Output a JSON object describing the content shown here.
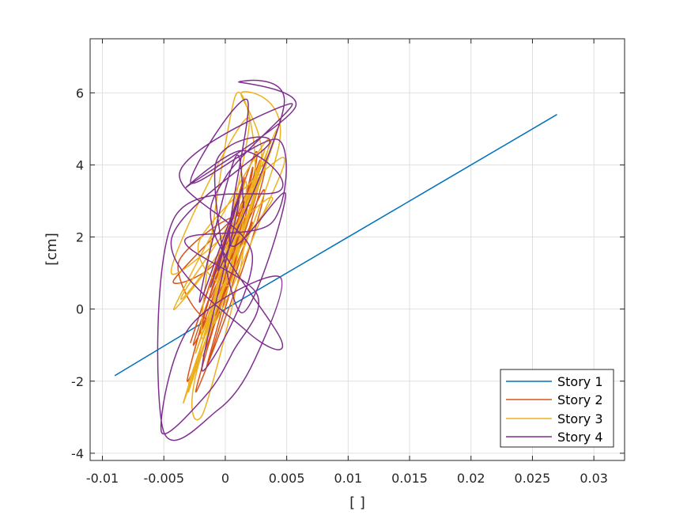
{
  "chart_data": {
    "type": "line",
    "title": "",
    "xlabel": "[ ]",
    "ylabel": "[cm]",
    "xlim": [
      -0.011,
      0.0325
    ],
    "ylim": [
      -4.2,
      7.5
    ],
    "xticks": [
      -0.01,
      -0.005,
      0,
      0.005,
      0.01,
      0.015,
      0.02,
      0.025,
      0.03
    ],
    "xtick_labels": [
      "-0.01",
      "-0.005",
      "0",
      "0.005",
      "0.01",
      "0.015",
      "0.02",
      "0.025",
      "0.03"
    ],
    "yticks": [
      -4,
      -2,
      0,
      2,
      4,
      6
    ],
    "ytick_labels": [
      "-4",
      "-2",
      "0",
      "2",
      "4",
      "6"
    ],
    "grid": true,
    "legend_position": "bottom-right",
    "series": [
      {
        "name": "Story 1",
        "color": "#0072BD",
        "x": [
          -0.009,
          0.0,
          0.009,
          0.018,
          0.027
        ],
        "y": [
          -1.85,
          0.0,
          1.8,
          3.6,
          5.4
        ]
      },
      {
        "name": "Story 2",
        "color": "#D95319",
        "x": [
          -0.0012,
          0.0006,
          -0.0002,
          0.0018,
          -0.0026,
          0.0022,
          -0.0031,
          0.0015,
          -0.0008,
          0.0021,
          -0.0042,
          -0.0005,
          0.0028,
          -0.002,
          0.0009,
          0.0032,
          -0.0015,
          0.0012,
          0.0024,
          -0.0028,
          0.0004,
          0.0027,
          -0.0018,
          0.0016,
          -0.0038,
          -0.0009,
          0.0022,
          0.0008,
          -0.0024,
          0.0014,
          0.0031,
          -0.0011
        ],
        "y": [
          0.3,
          1.7,
          0.7,
          3.1,
          -1.0,
          2.4,
          -2.0,
          3.6,
          0.9,
          2.9,
          0.8,
          1.4,
          4.1,
          -0.6,
          2.6,
          3.8,
          -1.6,
          1.9,
          4.3,
          -0.9,
          2.2,
          3.4,
          -1.3,
          2.5,
          1.3,
          -0.2,
          3.9,
          1.6,
          -2.3,
          1.1,
          3.3,
          0.2
        ]
      },
      {
        "name": "Story 3",
        "color": "#EDB120",
        "x": [
          -0.0014,
          0.0011,
          -0.0024,
          0.0032,
          -0.0006,
          0.0027,
          -0.003,
          0.0036,
          -0.0042,
          0.0022,
          0.0008,
          -0.0019,
          0.0033,
          -0.0034,
          0.0017,
          0.0041,
          -0.0023,
          -0.0017,
          0.0015,
          -0.0036,
          0.0028,
          0.0013,
          0.0044,
          -0.0029,
          0.0006,
          0.0037,
          -0.0044,
          0.0019,
          -0.0012,
          0.0029,
          0.0046,
          -0.0021,
          0.0004,
          0.0016,
          -0.0026
        ],
        "y": [
          0.5,
          2.2,
          -1.2,
          4.4,
          0.8,
          3.6,
          -2.3,
          4.7,
          0.0,
          3.2,
          5.9,
          -0.8,
          4.0,
          -2.6,
          2.8,
          4.8,
          -1.7,
          -2.8,
          2.0,
          0.3,
          3.9,
          6.0,
          4.6,
          -2.0,
          1.3,
          3.1,
          1.0,
          5.3,
          -0.4,
          2.5,
          4.2,
          1.9,
          0.7,
          3.5,
          -1.9
        ]
      },
      {
        "name": "Story 4",
        "color": "#7E2F8E",
        "x": [
          -0.0012,
          0.0014,
          -0.0005,
          0.0048,
          0.0011,
          0.0057,
          -0.0031,
          0.0014,
          0.0045,
          -0.0042,
          -0.0051,
          -0.0006,
          0.0024,
          0.0044,
          -0.0029,
          -0.0052,
          -0.0016,
          0.0006,
          0.0026,
          -0.0033,
          0.0038,
          0.0043,
          -0.0028,
          0.0018,
          0.0004,
          0.0049,
          0.0013,
          -0.0008,
          0.0036,
          -0.0044,
          0.0017,
          0.0046,
          -0.0009,
          0.0001,
          0.0054,
          -0.0037,
          0.0022,
          -0.0019,
          0.0011,
          -0.0021,
          0.0008,
          0.0015
        ],
        "y": [
          0.6,
          3.4,
          1.1,
          5.7,
          6.3,
          5.6,
          3.4,
          4.4,
          3.3,
          2.5,
          -3.3,
          -2.8,
          -1.4,
          0.9,
          -0.5,
          -3.4,
          -2.4,
          -1.2,
          0.4,
          1.9,
          2.4,
          4.7,
          3.5,
          5.8,
          1.8,
          3.2,
          -0.1,
          4.0,
          4.6,
          1.9,
          -0.6,
          -0.9,
          2.1,
          3.7,
          5.7,
          3.8,
          1.5,
          -1.7,
          3.0,
          0.2,
          4.2,
          2.8
        ]
      }
    ]
  }
}
